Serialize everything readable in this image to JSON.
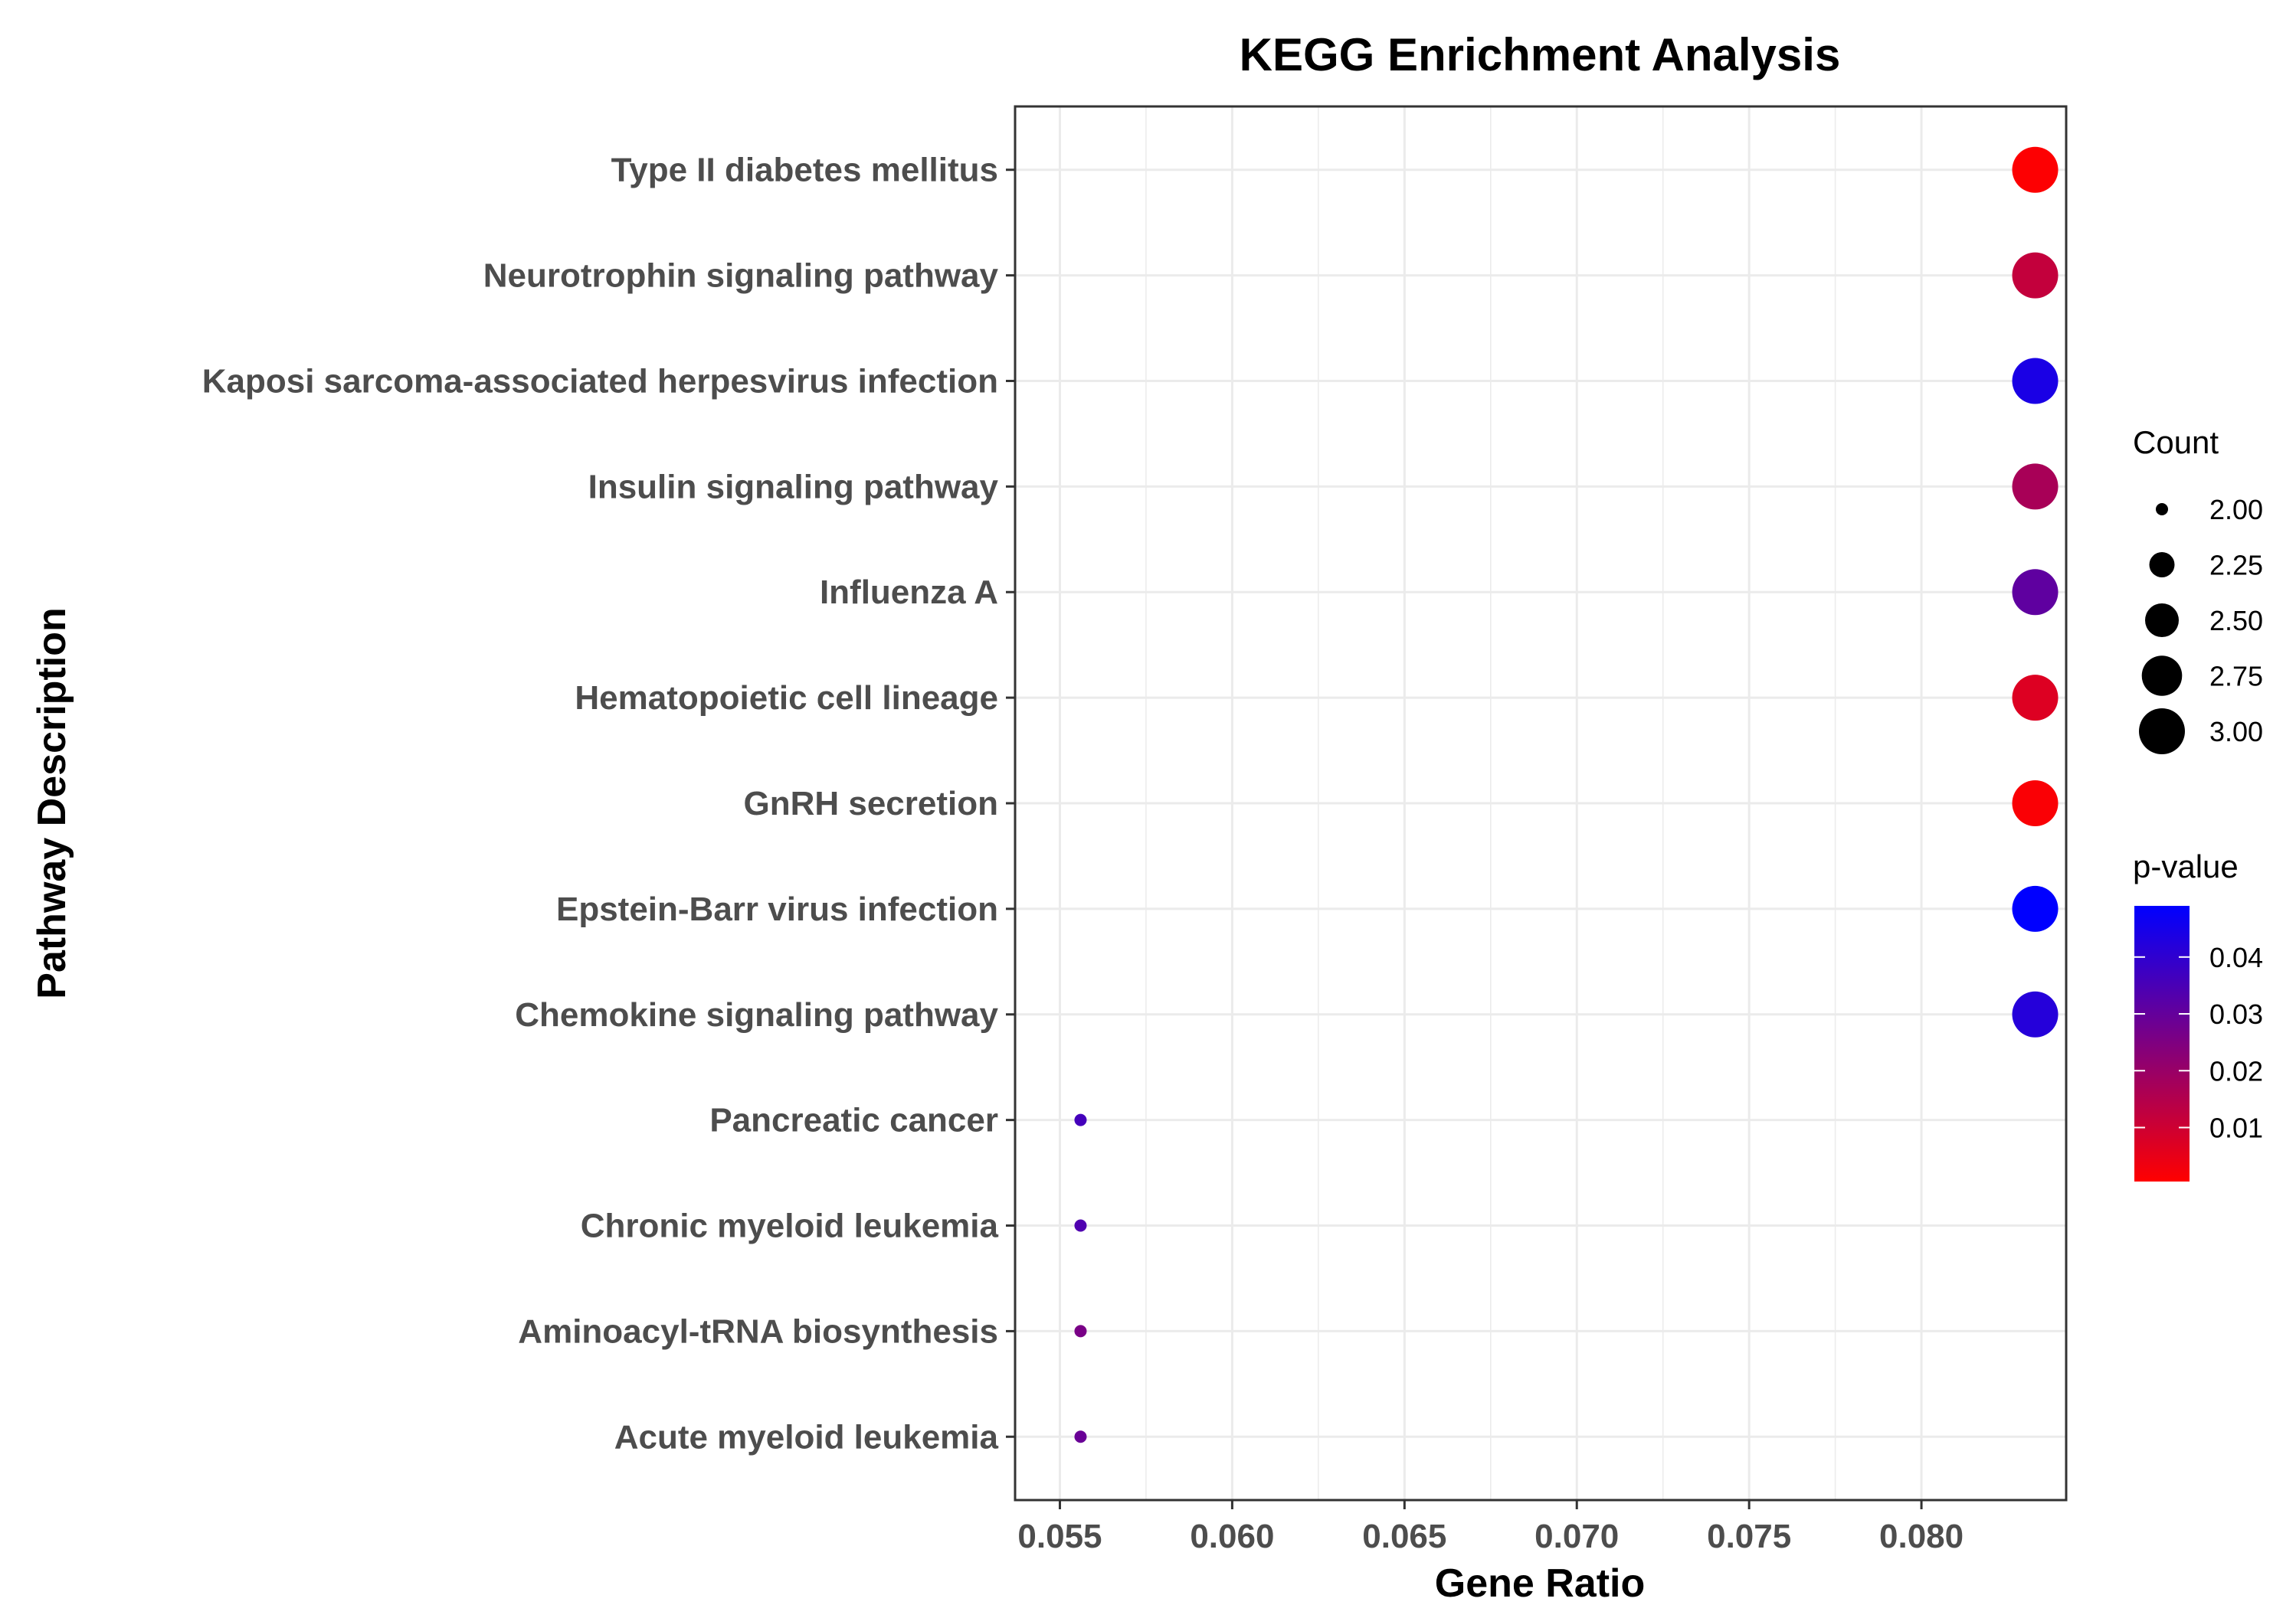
{
  "chart_data": {
    "type": "scatter",
    "title": "KEGG Enrichment Analysis",
    "xlabel": "Gene Ratio",
    "ylabel": "Pathway Description",
    "xlim": [
      0.0537,
      0.0842
    ],
    "x_ticks": [
      0.055,
      0.06,
      0.065,
      0.07,
      0.075,
      0.08
    ],
    "x_tick_labels": [
      "0.055",
      "0.060",
      "0.065",
      "0.070",
      "0.075",
      "0.080"
    ],
    "grid": true,
    "points": [
      {
        "pathway": "Type II diabetes mellitus",
        "gene_ratio": 0.0833,
        "count": 3,
        "p_value": 0.0008
      },
      {
        "pathway": "Neurotrophin signaling pathway",
        "gene_ratio": 0.0833,
        "count": 3,
        "p_value": 0.012
      },
      {
        "pathway": "Kaposi sarcoma-associated herpesvirus infection",
        "gene_ratio": 0.0833,
        "count": 3,
        "p_value": 0.044
      },
      {
        "pathway": "Insulin signaling pathway",
        "gene_ratio": 0.0833,
        "count": 3,
        "p_value": 0.017
      },
      {
        "pathway": "Influenza A",
        "gene_ratio": 0.0833,
        "count": 3,
        "p_value": 0.031
      },
      {
        "pathway": "Hematopoietic cell lineage",
        "gene_ratio": 0.0833,
        "count": 3,
        "p_value": 0.007
      },
      {
        "pathway": "GnRH secretion",
        "gene_ratio": 0.0833,
        "count": 3,
        "p_value": 0.0015
      },
      {
        "pathway": "Epstein-Barr virus infection",
        "gene_ratio": 0.0833,
        "count": 3,
        "p_value": 0.049
      },
      {
        "pathway": "Chemokine signaling pathway",
        "gene_ratio": 0.0833,
        "count": 3,
        "p_value": 0.042
      },
      {
        "pathway": "Pancreatic cancer",
        "gene_ratio": 0.0556,
        "count": 2,
        "p_value": 0.036
      },
      {
        "pathway": "Chronic myeloid leukemia",
        "gene_ratio": 0.0556,
        "count": 2,
        "p_value": 0.034
      },
      {
        "pathway": "Aminoacyl-tRNA biosynthesis",
        "gene_ratio": 0.0556,
        "count": 2,
        "p_value": 0.026
      },
      {
        "pathway": "Acute myeloid leukemia",
        "gene_ratio": 0.0556,
        "count": 2,
        "p_value": 0.029
      }
    ],
    "legend_count": {
      "title": "Count",
      "values": [
        2.0,
        2.25,
        2.5,
        2.75,
        3.0
      ],
      "labels": [
        "2.00",
        "2.25",
        "2.50",
        "2.75",
        "3.00"
      ]
    },
    "legend_pvalue": {
      "title": "p-value",
      "range": [
        0.0005,
        0.049
      ],
      "ticks": [
        0.04,
        0.03,
        0.02,
        0.01
      ],
      "labels": [
        "0.04",
        "0.03",
        "0.02",
        "0.01"
      ],
      "low_color": "#ff0000",
      "high_color": "#0000ff"
    },
    "legend_position": "right",
    "panel_border_color": "#333333",
    "grid_color": "#ebebeb"
  }
}
